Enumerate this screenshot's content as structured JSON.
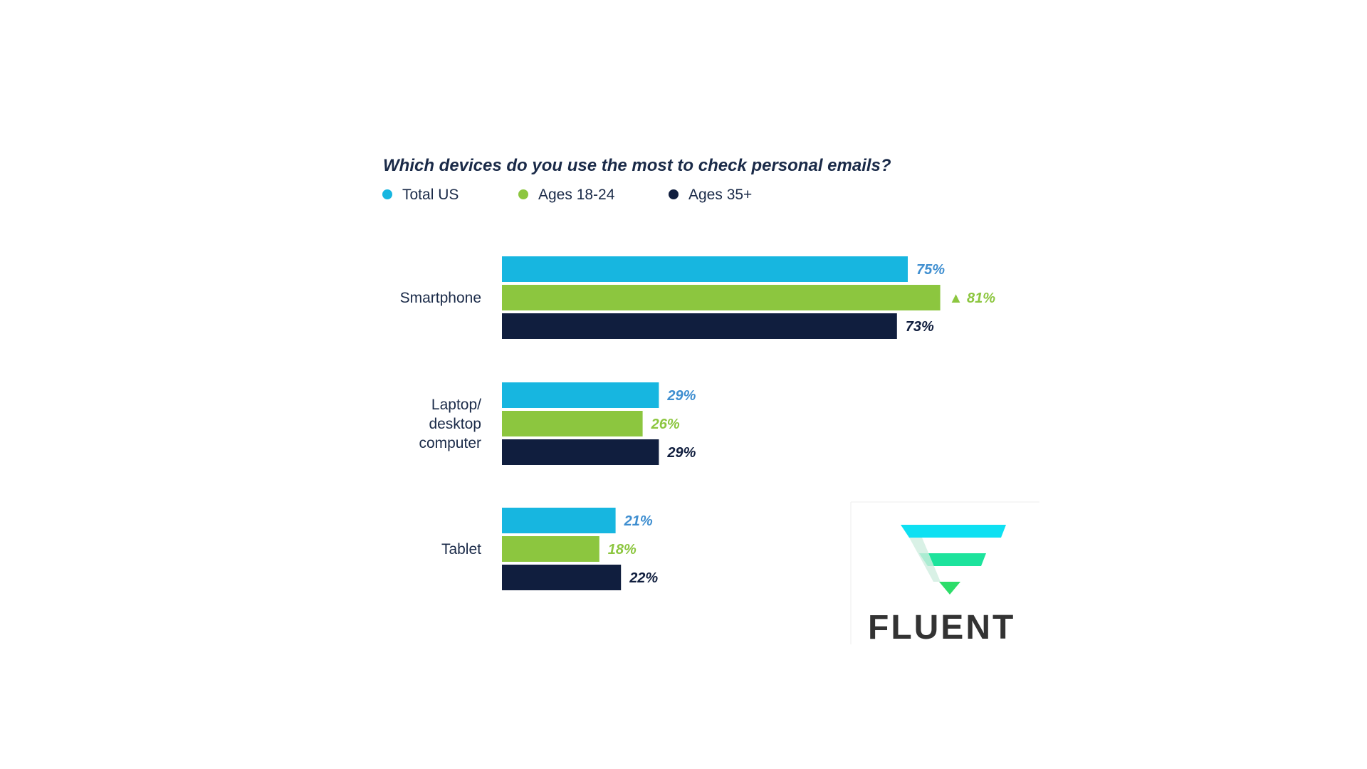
{
  "chart_data": {
    "type": "bar",
    "orientation": "horizontal",
    "title": "Which devices do you use the most to check personal emails?",
    "categories": [
      "Smartphone",
      "Laptop/ desktop computer",
      "Tablet"
    ],
    "category_lines": [
      [
        "Smartphone"
      ],
      [
        "Laptop/",
        "desktop",
        "computer"
      ],
      [
        "Tablet"
      ]
    ],
    "series": [
      {
        "name": "Total US",
        "color": "#17b6e0",
        "label_color": "#3e8ed0",
        "values": [
          75,
          29,
          21
        ]
      },
      {
        "name": "Ages 18-24",
        "color": "#8cc63f",
        "label_color": "#8cc63f",
        "values": [
          81,
          26,
          18
        ]
      },
      {
        "name": "Ages 35+",
        "color": "#101e3e",
        "label_color": "#101e3e",
        "values": [
          73,
          29,
          22
        ]
      }
    ],
    "value_suffix": "%",
    "highlight": {
      "series": 1,
      "category": 0,
      "marker": "▲"
    },
    "xlim": [
      0,
      100
    ],
    "grid": false,
    "legend": "top-left",
    "xlabel": "",
    "ylabel": ""
  },
  "logo": {
    "text": "FLUENT",
    "colors": [
      "#0ee0f2",
      "#1de39c",
      "#2ddd6a"
    ]
  }
}
